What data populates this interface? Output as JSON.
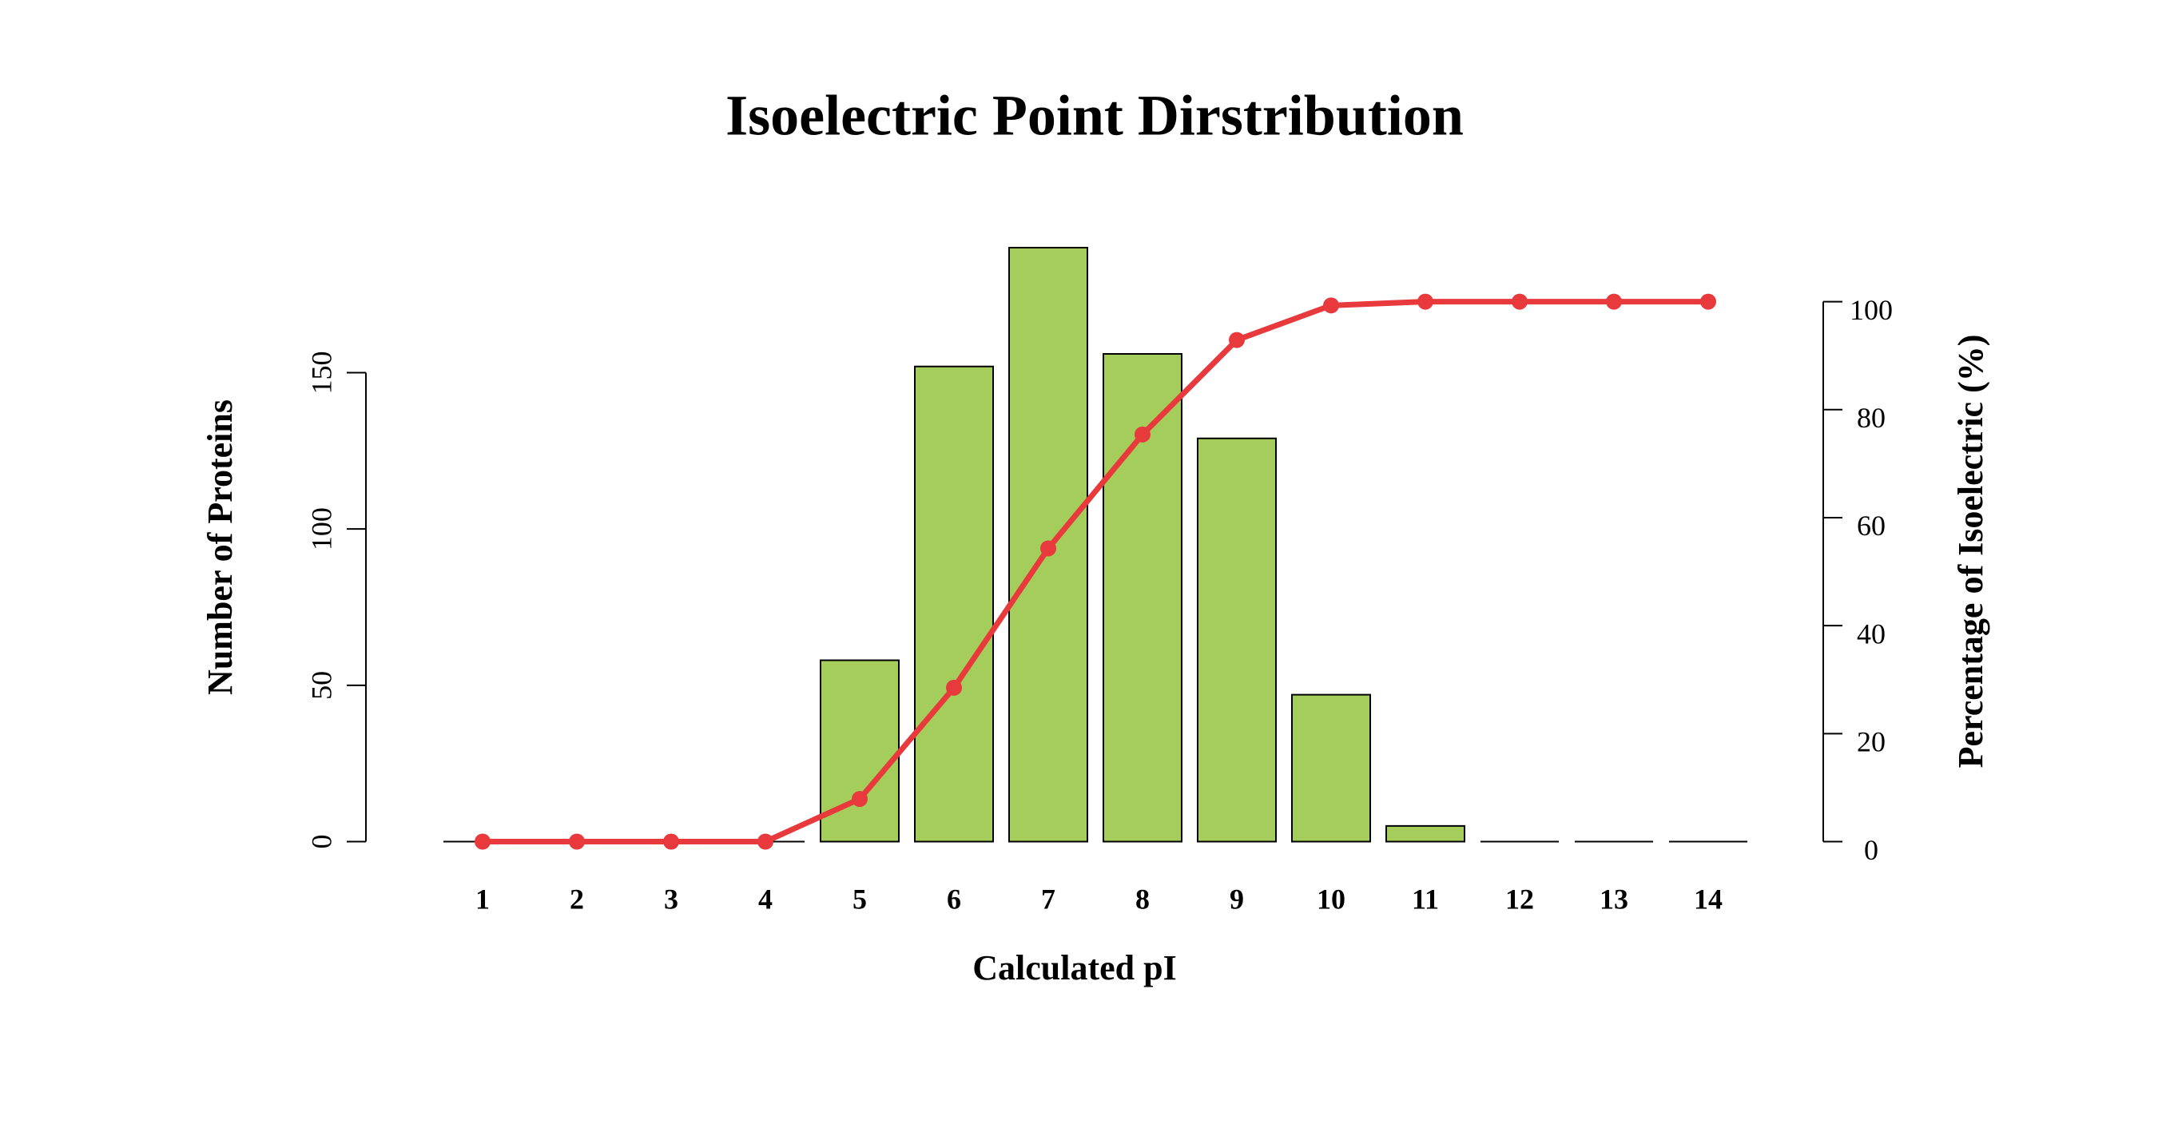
{
  "chart_data": {
    "type": "bar",
    "title": "Isoelectric Point Dirstribution",
    "x_label": "Calculated pI",
    "y_label": "Number of Proteins",
    "y2_label": "Percentage of Isoelectric (%)",
    "categories": [
      "1",
      "2",
      "3",
      "4",
      "5",
      "6",
      "7",
      "8",
      "9",
      "10",
      "11",
      "12",
      "13",
      "14"
    ],
    "series": [
      {
        "type": "bar",
        "color": "#a5cd5c",
        "values": [
          0,
          0,
          0,
          0,
          58,
          152,
          190,
          156,
          129,
          47,
          5,
          0,
          0,
          0
        ]
      },
      {
        "type": "line",
        "color": "#e8393c",
        "axis": "y2",
        "values": [
          0,
          0,
          0,
          0,
          7.9,
          28.5,
          54.3,
          75.4,
          92.9,
          99.3,
          100,
          100,
          100,
          100
        ]
      }
    ],
    "ylim": [
      0,
      190
    ],
    "yticks": [
      0,
      50,
      100,
      150
    ],
    "y2lim": [
      0,
      110
    ],
    "y2ticks": [
      0,
      20,
      40,
      60,
      80,
      100
    ]
  }
}
